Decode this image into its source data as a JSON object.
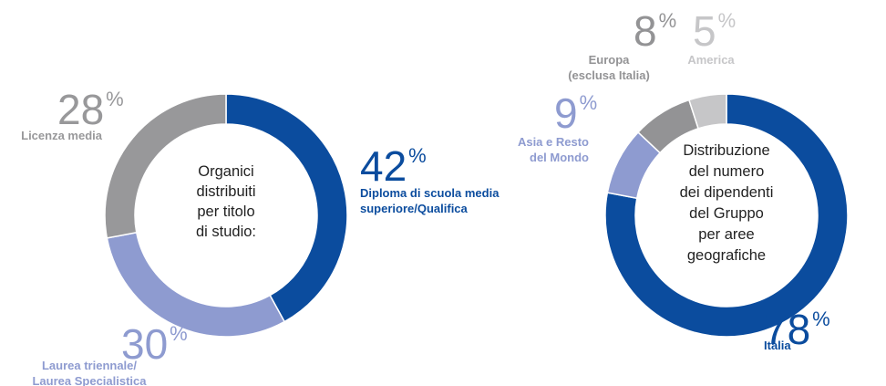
{
  "chart_data": [
    {
      "type": "pie",
      "donut": true,
      "unit": "%",
      "title": [
        "Organici",
        "distribuiti",
        "per titolo",
        "di studio:"
      ],
      "categories": [
        [
          "Diploma di scuola media",
          "superiore/Qualifica"
        ],
        [
          "Laurea triennale/",
          "Laurea Specialistica"
        ],
        [
          "Licenza media"
        ]
      ],
      "values": [
        42,
        30,
        28
      ],
      "colors": [
        "#0b4c9e",
        "#8e9bd0",
        "#98989a"
      ]
    },
    {
      "type": "pie",
      "donut": true,
      "unit": "%",
      "title": [
        "Distribuzione",
        "del numero",
        "dei dipendenti",
        "del Gruppo",
        "per aree",
        "geografiche"
      ],
      "categories": [
        [
          "Italia"
        ],
        [
          "Asia e Resto",
          "del Mondo"
        ],
        [
          "Europa",
          "(esclusa Italia)"
        ],
        [
          "America"
        ]
      ],
      "values": [
        78,
        9,
        8,
        5
      ],
      "colors": [
        "#0b4c9e",
        "#8e9bd0",
        "#939395",
        "#c6c6c8"
      ]
    }
  ]
}
